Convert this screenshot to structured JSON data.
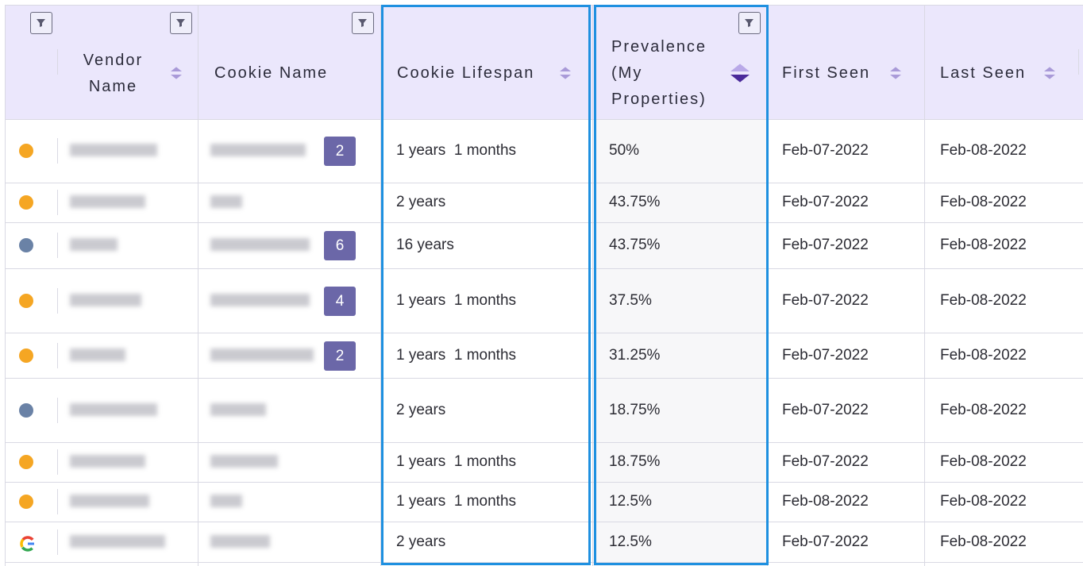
{
  "table": {
    "columns": [
      "Vendor Name",
      "Cookie Name",
      "Cookie Lifespan",
      "Prevalence (My Properties)",
      "First Seen",
      "Last Seen"
    ],
    "rows": [
      {
        "marker": "#F5A623",
        "badge": "2",
        "lifespan": "1 years  1 months",
        "prevalence": "50%",
        "first_seen": "Feb-07-2022",
        "last_seen": "Feb-08-2022"
      },
      {
        "marker": "#F5A623",
        "badge": null,
        "lifespan": "2 years",
        "prevalence": "43.75%",
        "first_seen": "Feb-07-2022",
        "last_seen": "Feb-08-2022"
      },
      {
        "marker": "#6A82A6",
        "badge": "6",
        "lifespan": "16 years",
        "prevalence": "43.75%",
        "first_seen": "Feb-07-2022",
        "last_seen": "Feb-08-2022"
      },
      {
        "marker": "#F5A623",
        "badge": "4",
        "lifespan": "1 years  1 months",
        "prevalence": "37.5%",
        "first_seen": "Feb-07-2022",
        "last_seen": "Feb-08-2022"
      },
      {
        "marker": "#F5A623",
        "badge": "2",
        "lifespan": "1 years  1 months",
        "prevalence": "31.25%",
        "first_seen": "Feb-07-2022",
        "last_seen": "Feb-08-2022"
      },
      {
        "marker": "#6A82A6",
        "badge": null,
        "lifespan": "2 years",
        "prevalence": "18.75%",
        "first_seen": "Feb-07-2022",
        "last_seen": "Feb-08-2022"
      },
      {
        "marker": "#F5A623",
        "badge": null,
        "lifespan": "1 years  1 months",
        "prevalence": "18.75%",
        "first_seen": "Feb-07-2022",
        "last_seen": "Feb-08-2022"
      },
      {
        "marker": "#F5A623",
        "badge": null,
        "lifespan": "1 years  1 months",
        "prevalence": "12.5%",
        "first_seen": "Feb-08-2022",
        "last_seen": "Feb-08-2022"
      },
      {
        "marker": "google",
        "badge": null,
        "lifespan": "2 years",
        "prevalence": "12.5%",
        "first_seen": "Feb-07-2022",
        "last_seen": "Feb-08-2022"
      }
    ]
  }
}
